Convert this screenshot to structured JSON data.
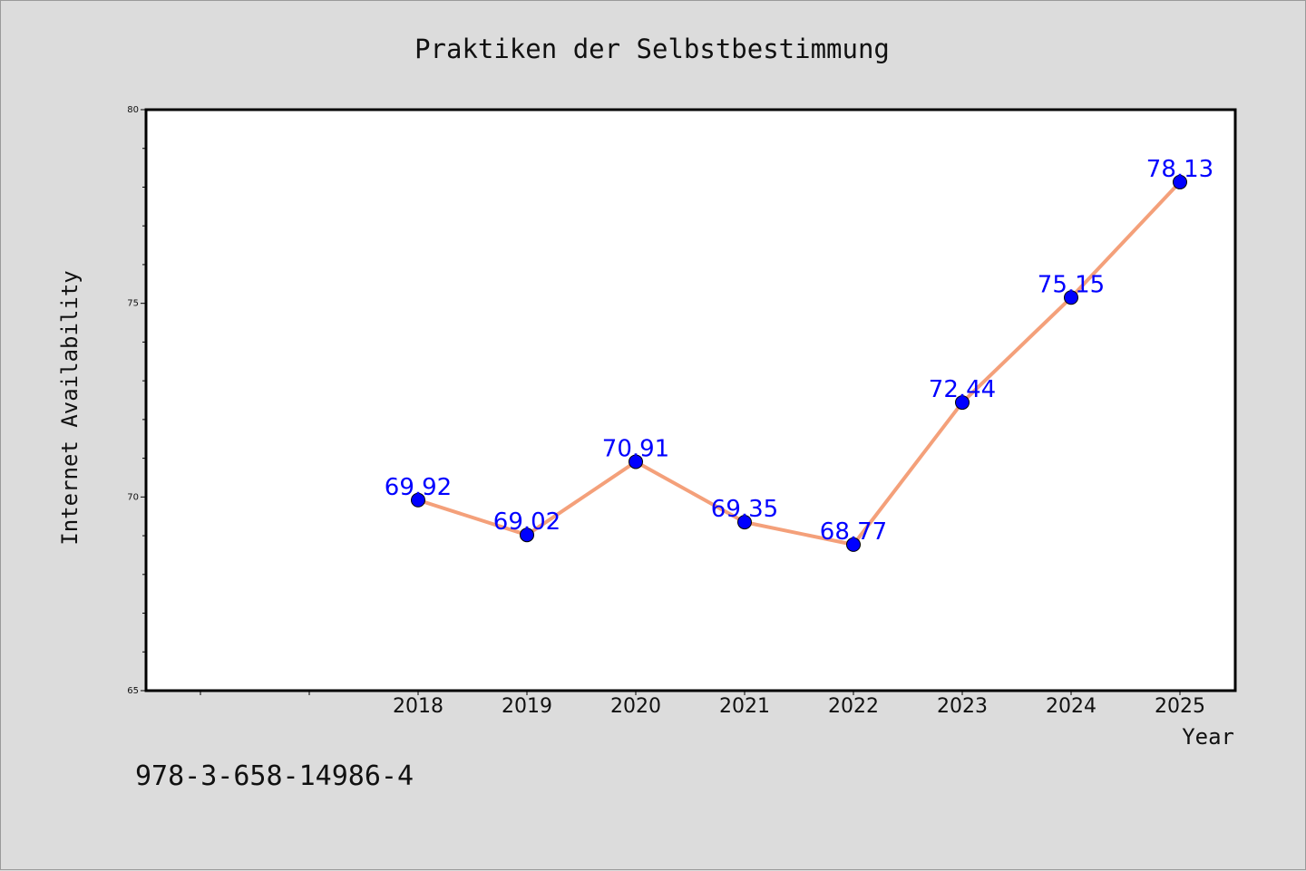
{
  "colors": {
    "background": "#dcdcdc",
    "plot_background": "#ffffff",
    "line": "#f4a07a",
    "marker": "#0000ff",
    "data_label": "#0000ff"
  },
  "footer_text": "978-3-658-14986-4",
  "chart_data": {
    "type": "line",
    "title": "Praktiken der Selbstbestimmung",
    "xlabel": "Year",
    "ylabel": "Internet Availability",
    "categories": [
      "2018",
      "2019",
      "2020",
      "2021",
      "2022",
      "2023",
      "2024",
      "2025"
    ],
    "series": [
      {
        "values": [
          69.92,
          69.02,
          70.91,
          69.35,
          68.77,
          72.44,
          75.15,
          78.13
        ]
      }
    ],
    "data_labels": [
      "69.92",
      "69.02",
      "70.91",
      "69.35",
      "68.77",
      "72.44",
      "75.15",
      "78.13"
    ],
    "x_extra_ticks": [
      "2016",
      "2017"
    ],
    "ylim": [
      65,
      80
    ],
    "yticks": [
      65,
      70,
      75,
      80
    ],
    "y_minor_step": 1,
    "grid": false,
    "legend": "none"
  }
}
